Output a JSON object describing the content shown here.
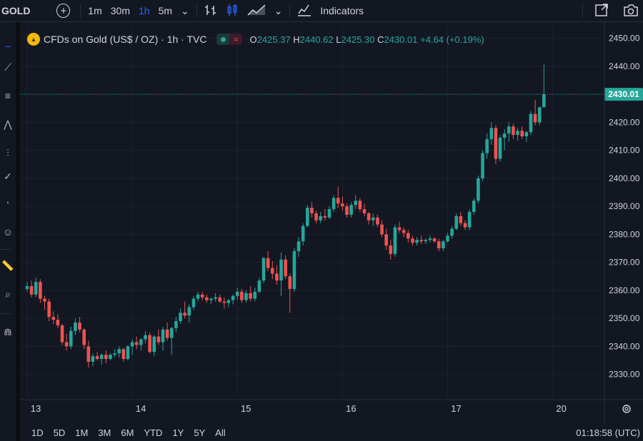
{
  "toolbar": {
    "symbol": "GOLD",
    "intervals": [
      "1m",
      "30m",
      "1h",
      "5m"
    ],
    "active_interval": "1h",
    "indicators_label": "Indicators"
  },
  "legend": {
    "title": "CFDs on Gold (US$ / OZ) · 1h · TVC",
    "o_label": "O",
    "o": "2425.37",
    "h_label": "H",
    "h": "2440.62",
    "l_label": "L",
    "l": "2425.30",
    "c_label": "C",
    "c": "2430.01",
    "change": "+4.64 (+0.19%)"
  },
  "bottombar": {
    "ranges": [
      "1D",
      "5D",
      "1M",
      "3M",
      "6M",
      "YTD",
      "1Y",
      "5Y",
      "All"
    ],
    "clock": "01:18:58 (UTC)"
  },
  "colors": {
    "up": "#26a69a",
    "down": "#ef5350",
    "bg": "#131722",
    "grid": "#1e222d",
    "last_price": "#26a69a"
  },
  "chart_data": {
    "type": "candlestick",
    "title": "CFDs on Gold (US$ / OZ) · 1h · TVC",
    "ylim": [
      2322,
      2454
    ],
    "y_ticks": [
      2330,
      2340,
      2350,
      2360,
      2370,
      2380,
      2390,
      2400,
      2410,
      2420,
      2430,
      2440,
      2450
    ],
    "x_ticks": [
      {
        "label": "13",
        "index": 0
      },
      {
        "label": "14",
        "index": 24
      },
      {
        "label": "15",
        "index": 48
      },
      {
        "label": "16",
        "index": 72
      },
      {
        "label": "17",
        "index": 96
      },
      {
        "label": "20",
        "index": 120
      }
    ],
    "last_price": "2430.01",
    "grid": true,
    "candles": [
      [
        2360.5,
        2363.0,
        2359.5,
        2361.5
      ],
      [
        2361.5,
        2363.5,
        2357.5,
        2358.5
      ],
      [
        2358.5,
        2364.5,
        2357.5,
        2363.0
      ],
      [
        2363.0,
        2364.0,
        2355.5,
        2357.0
      ],
      [
        2357.0,
        2358.0,
        2353.0,
        2356.0
      ],
      [
        2356.0,
        2357.0,
        2349.0,
        2350.5
      ],
      [
        2350.5,
        2352.5,
        2348.0,
        2349.5
      ],
      [
        2349.5,
        2351.5,
        2346.5,
        2347.5
      ],
      [
        2347.5,
        2348.0,
        2340.5,
        2341.5
      ],
      [
        2341.5,
        2344.5,
        2338.5,
        2340.0
      ],
      [
        2340.0,
        2347.0,
        2339.0,
        2345.5
      ],
      [
        2345.5,
        2350.0,
        2344.0,
        2348.5
      ],
      [
        2348.5,
        2350.5,
        2345.0,
        2346.0
      ],
      [
        2346.0,
        2346.5,
        2339.0,
        2340.5
      ],
      [
        2340.0,
        2342.0,
        2332.5,
        2334.5
      ],
      [
        2334.5,
        2337.5,
        2333.0,
        2336.5
      ],
      [
        2336.5,
        2338.0,
        2335.0,
        2335.5
      ],
      [
        2335.5,
        2337.5,
        2333.5,
        2337.0
      ],
      [
        2337.0,
        2338.5,
        2334.0,
        2335.5
      ],
      [
        2335.5,
        2337.5,
        2335.0,
        2337.0
      ],
      [
        2337.0,
        2339.0,
        2336.0,
        2337.5
      ],
      [
        2337.5,
        2340.0,
        2336.0,
        2339.0
      ],
      [
        2339.0,
        2339.5,
        2334.5,
        2335.5
      ],
      [
        2335.5,
        2340.5,
        2335.0,
        2340.0
      ],
      [
        2340.0,
        2342.5,
        2337.0,
        2341.5
      ],
      [
        2341.5,
        2343.5,
        2339.0,
        2340.5
      ],
      [
        2340.5,
        2343.0,
        2338.5,
        2342.5
      ],
      [
        2342.5,
        2345.5,
        2341.0,
        2344.0
      ],
      [
        2344.0,
        2345.0,
        2337.5,
        2338.0
      ],
      [
        2338.0,
        2344.0,
        2336.5,
        2343.5
      ],
      [
        2343.5,
        2346.0,
        2340.5,
        2341.5
      ],
      [
        2341.5,
        2347.0,
        2338.5,
        2346.0
      ],
      [
        2346.0,
        2348.5,
        2342.0,
        2343.0
      ],
      [
        2343.0,
        2347.0,
        2337.0,
        2346.5
      ],
      [
        2346.5,
        2350.5,
        2345.0,
        2349.0
      ],
      [
        2349.0,
        2353.5,
        2348.0,
        2352.0
      ],
      [
        2352.0,
        2356.0,
        2350.0,
        2351.0
      ],
      [
        2351.0,
        2355.0,
        2348.5,
        2354.0
      ],
      [
        2354.0,
        2358.0,
        2353.0,
        2357.0
      ],
      [
        2357.0,
        2359.5,
        2356.0,
        2358.5
      ],
      [
        2358.5,
        2359.5,
        2356.5,
        2357.5
      ],
      [
        2357.5,
        2358.5,
        2355.5,
        2356.5
      ],
      [
        2356.5,
        2357.5,
        2355.0,
        2357.0
      ],
      [
        2357.0,
        2359.0,
        2356.0,
        2357.5
      ],
      [
        2357.5,
        2358.5,
        2355.5,
        2356.0
      ],
      [
        2356.0,
        2357.5,
        2353.5,
        2355.5
      ],
      [
        2355.5,
        2357.0,
        2354.0,
        2356.5
      ],
      [
        2356.5,
        2358.5,
        2355.0,
        2358.0
      ],
      [
        2358.0,
        2361.0,
        2356.5,
        2359.5
      ],
      [
        2359.5,
        2360.5,
        2355.5,
        2356.5
      ],
      [
        2356.5,
        2360.0,
        2355.5,
        2359.0
      ],
      [
        2359.0,
        2361.5,
        2356.0,
        2357.0
      ],
      [
        2357.0,
        2361.0,
        2356.0,
        2359.5
      ],
      [
        2359.5,
        2364.5,
        2359.0,
        2363.5
      ],
      [
        2363.5,
        2372.0,
        2362.5,
        2371.5
      ],
      [
        2371.5,
        2374.0,
        2367.0,
        2368.0
      ],
      [
        2368.0,
        2370.5,
        2364.0,
        2366.0
      ],
      [
        2366.0,
        2369.0,
        2362.0,
        2363.5
      ],
      [
        2363.5,
        2373.5,
        2358.0,
        2371.0
      ],
      [
        2371.0,
        2372.5,
        2364.0,
        2365.0
      ],
      [
        2365.0,
        2366.0,
        2352.0,
        2360.5
      ],
      [
        2360.5,
        2375.0,
        2359.5,
        2374.0
      ],
      [
        2374.0,
        2379.0,
        2372.0,
        2377.5
      ],
      [
        2377.5,
        2384.0,
        2376.0,
        2383.0
      ],
      [
        2383.0,
        2390.5,
        2382.5,
        2389.5
      ],
      [
        2389.5,
        2391.5,
        2386.0,
        2387.5
      ],
      [
        2387.5,
        2388.5,
        2384.0,
        2385.0
      ],
      [
        2385.0,
        2388.0,
        2384.0,
        2386.5
      ],
      [
        2386.5,
        2389.0,
        2385.0,
        2386.0
      ],
      [
        2386.0,
        2390.0,
        2385.5,
        2389.0
      ],
      [
        2389.0,
        2394.0,
        2388.0,
        2393.0
      ],
      [
        2393.0,
        2397.0,
        2389.5,
        2391.0
      ],
      [
        2391.0,
        2393.5,
        2388.5,
        2390.0
      ],
      [
        2390.0,
        2391.0,
        2386.0,
        2387.0
      ],
      [
        2387.0,
        2391.5,
        2386.0,
        2390.5
      ],
      [
        2390.5,
        2394.0,
        2389.0,
        2392.0
      ],
      [
        2392.0,
        2393.0,
        2388.0,
        2389.0
      ],
      [
        2389.0,
        2391.0,
        2386.5,
        2387.5
      ],
      [
        2387.5,
        2388.0,
        2383.5,
        2385.0
      ],
      [
        2385.0,
        2387.5,
        2383.0,
        2386.0
      ],
      [
        2386.0,
        2387.0,
        2382.5,
        2383.5
      ],
      [
        2383.5,
        2385.0,
        2379.0,
        2380.0
      ],
      [
        2380.0,
        2382.0,
        2374.5,
        2376.0
      ],
      [
        2376.0,
        2378.0,
        2371.0,
        2373.0
      ],
      [
        2373.0,
        2383.5,
        2372.0,
        2382.5
      ],
      [
        2382.5,
        2384.5,
        2380.5,
        2381.5
      ],
      [
        2381.5,
        2382.5,
        2379.0,
        2380.5
      ],
      [
        2380.5,
        2381.5,
        2377.0,
        2378.5
      ],
      [
        2378.5,
        2379.5,
        2376.0,
        2377.0
      ],
      [
        2377.0,
        2379.0,
        2376.0,
        2378.0
      ],
      [
        2378.0,
        2379.5,
        2376.5,
        2377.5
      ],
      [
        2377.5,
        2378.5,
        2376.5,
        2378.0
      ],
      [
        2378.0,
        2379.5,
        2377.0,
        2378.5
      ],
      [
        2378.5,
        2379.0,
        2377.0,
        2377.5
      ],
      [
        2377.5,
        2378.5,
        2374.0,
        2375.0
      ],
      [
        2375.0,
        2378.0,
        2374.0,
        2377.5
      ],
      [
        2377.5,
        2380.5,
        2377.0,
        2379.5
      ],
      [
        2379.5,
        2383.0,
        2378.5,
        2382.0
      ],
      [
        2382.0,
        2387.5,
        2381.5,
        2386.5
      ],
      [
        2386.5,
        2388.0,
        2383.0,
        2384.0
      ],
      [
        2384.0,
        2385.0,
        2381.5,
        2382.5
      ],
      [
        2382.5,
        2389.0,
        2381.5,
        2388.0
      ],
      [
        2388.0,
        2393.0,
        2387.0,
        2392.0
      ],
      [
        2392.0,
        2401.0,
        2391.0,
        2400.0
      ],
      [
        2400.0,
        2410.0,
        2399.0,
        2409.0
      ],
      [
        2409.0,
        2416.0,
        2407.0,
        2414.0
      ],
      [
        2414.0,
        2420.0,
        2412.0,
        2418.0
      ],
      [
        2418.0,
        2419.0,
        2405.0,
        2407.0
      ],
      [
        2407.0,
        2415.5,
        2406.0,
        2414.5
      ],
      [
        2414.5,
        2417.5,
        2410.0,
        2416.0
      ],
      [
        2416.0,
        2420.0,
        2413.0,
        2418.5
      ],
      [
        2418.5,
        2419.5,
        2414.0,
        2415.5
      ],
      [
        2415.5,
        2418.0,
        2413.5,
        2417.0
      ],
      [
        2417.0,
        2418.5,
        2414.0,
        2415.0
      ],
      [
        2415.0,
        2417.0,
        2413.0,
        2416.5
      ],
      [
        2416.5,
        2424.0,
        2415.5,
        2423.0
      ],
      [
        2423.0,
        2428.0,
        2419.0,
        2420.0
      ],
      [
        2420.0,
        2425.5,
        2419.0,
        2425.4
      ],
      [
        2425.37,
        2440.62,
        2425.3,
        2430.01
      ]
    ]
  }
}
